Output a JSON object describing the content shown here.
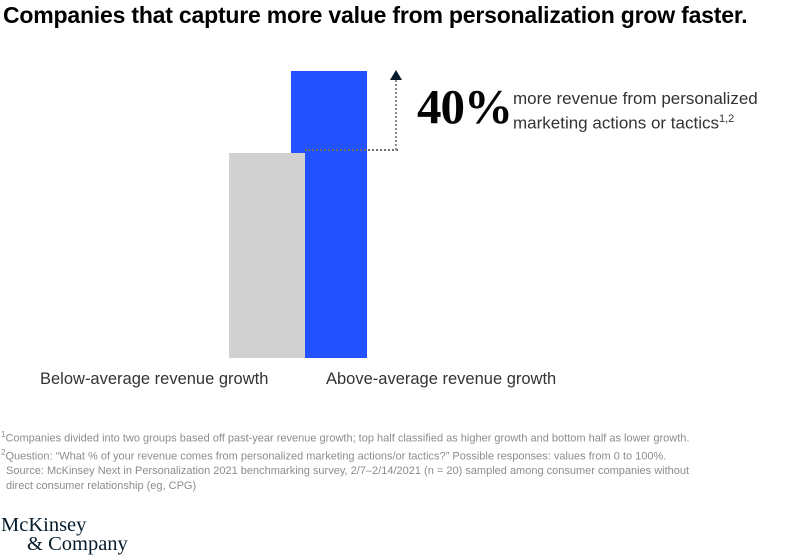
{
  "title": "Companies that capture more value from personalization grow faster.",
  "chart_data": {
    "type": "bar",
    "title": "Companies that capture more value from personalization grow faster.",
    "categories": [
      "Below-average revenue growth",
      "Above-average revenue growth"
    ],
    "values": [
      1.0,
      1.4
    ],
    "value_note": "no numeric axis shown; right bar is 40% taller than left bar",
    "bar_colors": [
      "#d1d1d1",
      "#2251ff"
    ],
    "grid": false,
    "axes_shown": false,
    "annotation": "40% more revenue from personalized marketing actions or tactics"
  },
  "annotation": {
    "value": "40%",
    "description_line1": "more revenue from personalized",
    "description_line2": "marketing actions or tactics",
    "superscript": "1,2",
    "arrow_icon": "arrow-up"
  },
  "footnotes": [
    {
      "sup": "1",
      "text": "Companies divided into two groups based off past-year revenue growth; top half classified as higher growth and bottom half as lower growth."
    },
    {
      "sup": "2",
      "text": "Question: “What % of your revenue comes from personalized marketing actions/or tactics?” Possible responses: values from 0 to 100%."
    },
    {
      "sup": "",
      "text": "Source: McKinsey Next in Personalization 2021 benchmarking survey, 2/7–2/14/2021 (n = 20) sampled among consumer companies without"
    },
    {
      "sup": "",
      "text": "direct consumer relationship (eg, CPG)"
    }
  ],
  "logo": {
    "line1": "McKinsey",
    "line2": "& Company"
  },
  "colors": {
    "accent_blue": "#2251ff",
    "bar_gray": "#d1d1d1",
    "navy": "#051c2c",
    "label_text": "#333333",
    "footnote_gray": "#8c8c8c"
  }
}
